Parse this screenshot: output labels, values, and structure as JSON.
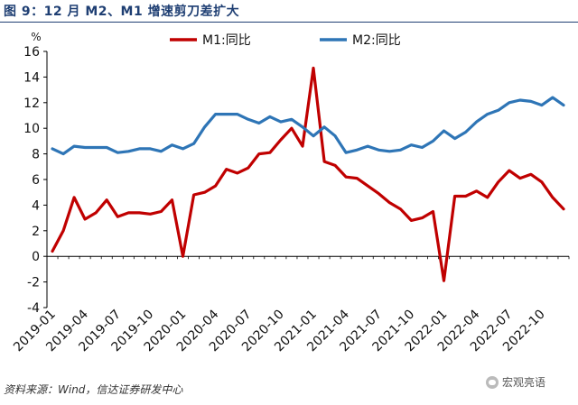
{
  "figure": {
    "title": "图 9：12 月 M2、M1 增速剪刀差扩大",
    "source": "资料来源：Wind，信达证券研发中心",
    "watermark": "宏观亮语"
  },
  "chart_data": {
    "type": "line",
    "title": "",
    "xlabel": "",
    "ylabel": "%",
    "ylim": [
      -4,
      16
    ],
    "yticks": [
      -4,
      -2,
      0,
      2,
      4,
      6,
      8,
      10,
      12,
      14,
      16
    ],
    "grid": false,
    "legend_position": "top",
    "x": [
      "2019-01",
      "2019-02",
      "2019-03",
      "2019-04",
      "2019-05",
      "2019-06",
      "2019-07",
      "2019-08",
      "2019-09",
      "2019-10",
      "2019-11",
      "2019-12",
      "2020-01",
      "2020-02",
      "2020-03",
      "2020-04",
      "2020-05",
      "2020-06",
      "2020-07",
      "2020-08",
      "2020-09",
      "2020-10",
      "2020-11",
      "2020-12",
      "2021-01",
      "2021-02",
      "2021-03",
      "2021-04",
      "2021-05",
      "2021-06",
      "2021-07",
      "2021-08",
      "2021-09",
      "2021-10",
      "2021-11",
      "2021-12",
      "2022-01",
      "2022-02",
      "2022-03",
      "2022-04",
      "2022-05",
      "2022-06",
      "2022-07",
      "2022-08",
      "2022-09",
      "2022-10",
      "2022-11",
      "2022-12"
    ],
    "xtick_labels": [
      "2019-01",
      "2019-04",
      "2019-07",
      "2019-10",
      "2020-01",
      "2020-04",
      "2020-07",
      "2020-10",
      "2021-01",
      "2021-04",
      "2021-07",
      "2021-10",
      "2022-01",
      "2022-04",
      "2022-07",
      "2022-10"
    ],
    "series": [
      {
        "name": "M1:同比",
        "color": "#c00000",
        "values": [
          0.4,
          2.0,
          4.6,
          2.9,
          3.4,
          4.4,
          3.1,
          3.4,
          3.4,
          3.3,
          3.5,
          4.4,
          0.0,
          4.8,
          5.0,
          5.5,
          6.8,
          6.5,
          6.9,
          8.0,
          8.1,
          9.1,
          10.0,
          8.6,
          14.7,
          7.4,
          7.1,
          6.2,
          6.1,
          5.5,
          4.9,
          4.2,
          3.7,
          2.8,
          3.0,
          3.5,
          -1.9,
          4.7,
          4.7,
          5.1,
          4.6,
          5.8,
          6.7,
          6.1,
          6.4,
          5.8,
          4.6,
          3.7
        ]
      },
      {
        "name": "M2:同比",
        "color": "#2e75b6",
        "values": [
          8.4,
          8.0,
          8.6,
          8.5,
          8.5,
          8.5,
          8.1,
          8.2,
          8.4,
          8.4,
          8.2,
          8.7,
          8.4,
          8.8,
          10.1,
          11.1,
          11.1,
          11.1,
          10.7,
          10.4,
          10.9,
          10.5,
          10.7,
          10.1,
          9.4,
          10.1,
          9.4,
          8.1,
          8.3,
          8.6,
          8.3,
          8.2,
          8.3,
          8.7,
          8.5,
          9.0,
          9.8,
          9.2,
          9.7,
          10.5,
          11.1,
          11.4,
          12.0,
          12.2,
          12.1,
          11.8,
          12.4,
          11.8
        ]
      }
    ]
  }
}
